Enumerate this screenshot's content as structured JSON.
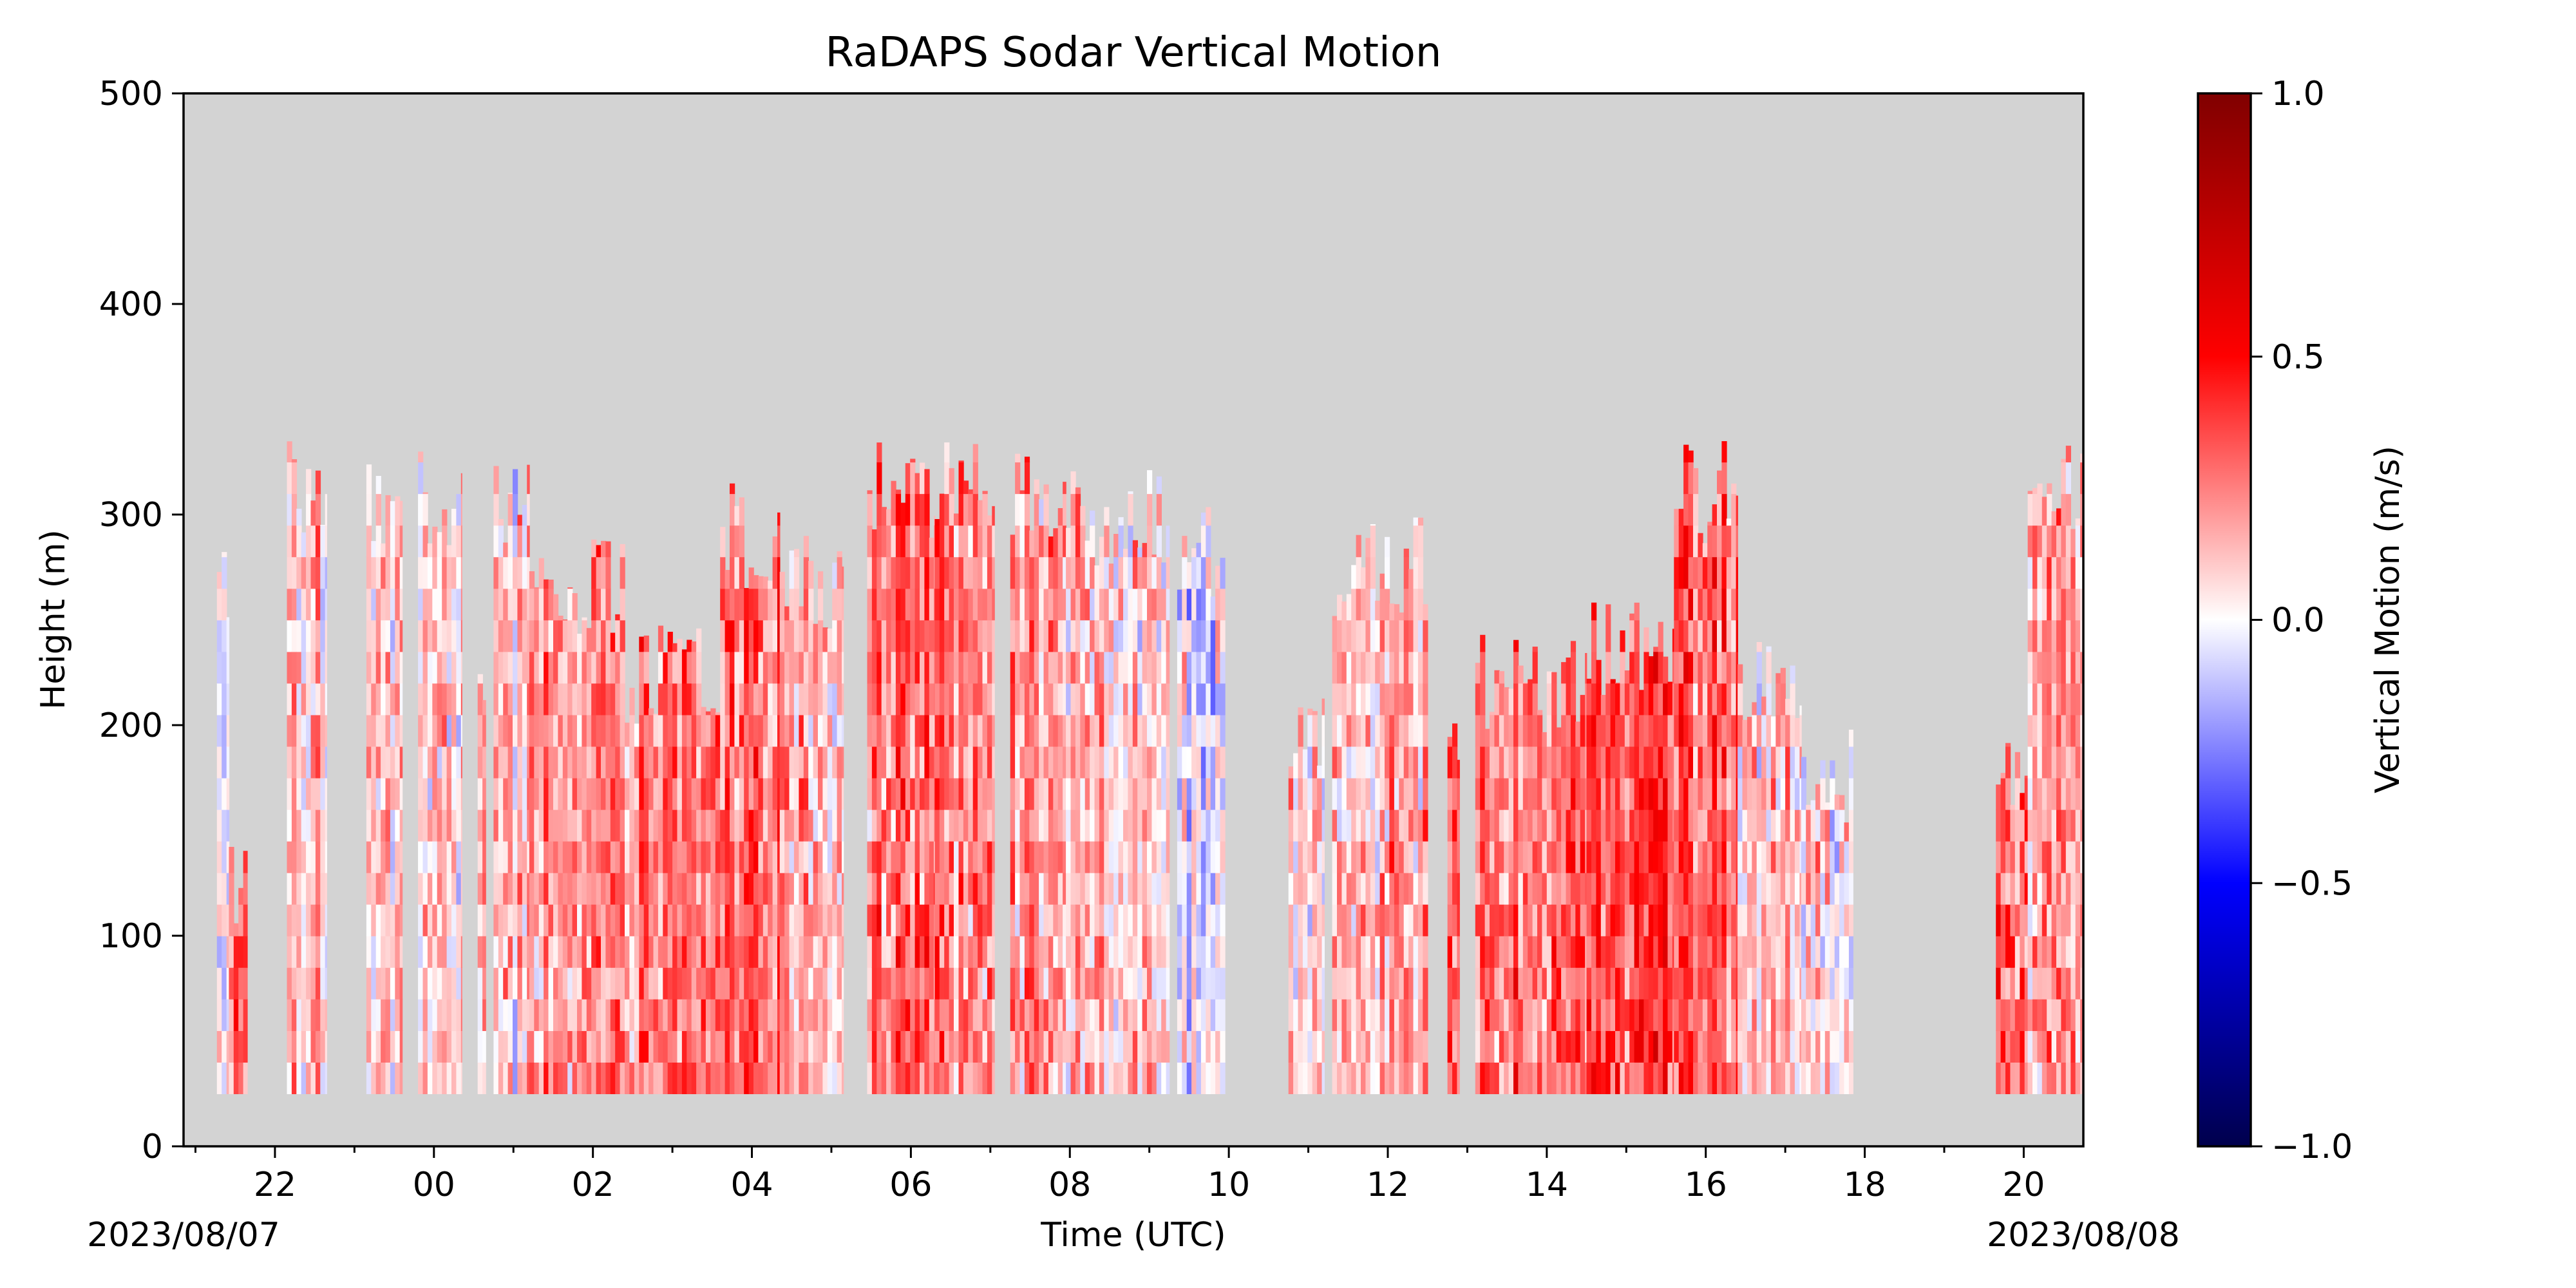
{
  "chart_data": {
    "type": "heatmap",
    "title": "RaDAPS Sodar Vertical Motion",
    "xlabel": "Time (UTC)",
    "ylabel": "Height (m)",
    "x_date_labels": {
      "start": "2023/08/07",
      "end": "2023/08/08"
    },
    "x_range_hours": [
      -3.15,
      20.75
    ],
    "x_ticks": [
      {
        "hour": -2,
        "label": "22"
      },
      {
        "hour": 0,
        "label": "00"
      },
      {
        "hour": 2,
        "label": "02"
      },
      {
        "hour": 4,
        "label": "04"
      },
      {
        "hour": 6,
        "label": "06"
      },
      {
        "hour": 8,
        "label": "08"
      },
      {
        "hour": 10,
        "label": "10"
      },
      {
        "hour": 12,
        "label": "12"
      },
      {
        "hour": 14,
        "label": "14"
      },
      {
        "hour": 16,
        "label": "16"
      },
      {
        "hour": 18,
        "label": "18"
      },
      {
        "hour": 20,
        "label": "20"
      }
    ],
    "ylim": [
      0,
      500
    ],
    "y_ticks": [
      {
        "value": 0,
        "label": "0"
      },
      {
        "value": 100,
        "label": "100"
      },
      {
        "value": 200,
        "label": "200"
      },
      {
        "value": 300,
        "label": "300"
      },
      {
        "value": 400,
        "label": "400"
      },
      {
        "value": 500,
        "label": "500"
      }
    ],
    "colorbar": {
      "label": "Vertical Motion (m/s)",
      "range": [
        -1.0,
        1.0
      ],
      "ticks": [
        {
          "value": 1.0,
          "label": "1.0"
        },
        {
          "value": 0.5,
          "label": "0.5"
        },
        {
          "value": 0.0,
          "label": "0.0"
        },
        {
          "value": -0.5,
          "label": "−0.5"
        },
        {
          "value": -1.0,
          "label": "−1.0"
        }
      ],
      "colormap": "seismic"
    },
    "missing_data_color": "#d3d3d3",
    "segments": [
      {
        "start": -2.73,
        "end": -2.58,
        "top": 265,
        "mean": 0.02
      },
      {
        "start": -2.58,
        "end": -2.35,
        "top": 120,
        "mean": 0.3
      },
      {
        "start": -1.85,
        "end": -1.35,
        "top": 310,
        "mean": 0.12
      },
      {
        "start": -0.85,
        "end": -0.4,
        "top": 310,
        "mean": 0.1
      },
      {
        "start": -0.2,
        "end": 0.35,
        "top": 310,
        "mean": 0.08
      },
      {
        "start": 0.55,
        "end": 0.65,
        "top": 205,
        "mean": 0.15
      },
      {
        "start": 0.75,
        "end": 1.2,
        "top": 310,
        "mean": 0.1
      },
      {
        "start": 1.2,
        "end": 2.4,
        "top": 265,
        "mean": 0.22
      },
      {
        "start": 2.4,
        "end": 3.6,
        "top": 225,
        "mean": 0.25
      },
      {
        "start": 3.6,
        "end": 4.35,
        "top": 290,
        "mean": 0.3
      },
      {
        "start": 4.35,
        "end": 5.15,
        "top": 265,
        "mean": 0.15
      },
      {
        "start": 5.45,
        "end": 6.3,
        "top": 310,
        "mean": 0.3
      },
      {
        "start": 6.3,
        "end": 7.05,
        "top": 310,
        "mean": 0.22
      },
      {
        "start": 7.25,
        "end": 7.95,
        "top": 310,
        "mean": 0.2
      },
      {
        "start": 7.95,
        "end": 9.25,
        "top": 300,
        "mean": 0.12
      },
      {
        "start": 9.35,
        "end": 9.95,
        "top": 280,
        "mean": -0.05
      },
      {
        "start": 10.75,
        "end": 11.2,
        "top": 190,
        "mean": 0.05
      },
      {
        "start": 11.3,
        "end": 12.5,
        "top": 275,
        "mean": 0.15
      },
      {
        "start": 12.75,
        "end": 12.9,
        "top": 205,
        "mean": 0.4
      },
      {
        "start": 13.1,
        "end": 14.5,
        "top": 220,
        "mean": 0.3
      },
      {
        "start": 14.5,
        "end": 15.6,
        "top": 235,
        "mean": 0.35
      },
      {
        "start": 15.6,
        "end": 16.4,
        "top": 310,
        "mean": 0.3
      },
      {
        "start": 16.4,
        "end": 17.2,
        "top": 220,
        "mean": 0.15
      },
      {
        "start": 17.2,
        "end": 17.85,
        "top": 175,
        "mean": 0.05
      },
      {
        "start": 19.65,
        "end": 20.05,
        "top": 175,
        "mean": 0.35
      },
      {
        "start": 20.05,
        "end": 20.75,
        "top": 310,
        "mean": 0.2
      }
    ]
  }
}
